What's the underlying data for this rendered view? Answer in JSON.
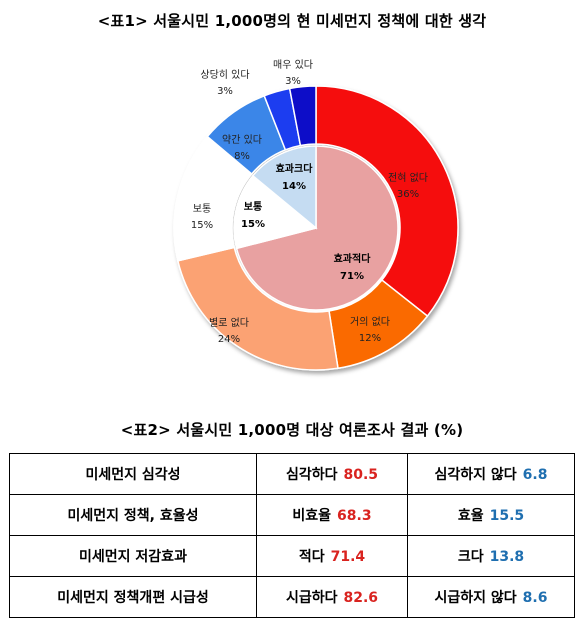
{
  "title1": "<표1> 서울시민 1,000명의 현 미세먼지 정책에 대한 생각",
  "title2": "<표2> 서울시민 1,000명 대상 여론조사 결과 (%)",
  "chart_data": {
    "type": "pie",
    "title": "<표1> 서울시민 1,000명의 현 미세먼지 정책에 대한 생각",
    "inner": [
      {
        "label": "효과적다",
        "value": 71,
        "text": "71%",
        "color": "#e8a1a1"
      },
      {
        "label": "보통",
        "value": 15,
        "text": "15%",
        "color": "#ffffff"
      },
      {
        "label": "효과크다",
        "value": 14,
        "text": "14%",
        "color": "#c5dcf2"
      }
    ],
    "outer": [
      {
        "label": "전혀 없다",
        "value": 36,
        "text": "36%",
        "color": "#f51010"
      },
      {
        "label": "거의 없다",
        "value": 12,
        "text": "12%",
        "color": "#fa6a06"
      },
      {
        "label": "별로 없다",
        "value": 24,
        "text": "24%",
        "color": "#fba273"
      },
      {
        "label": "보통",
        "value": 15,
        "text": "15%",
        "color": "#ffffff"
      },
      {
        "label": "약간 있다",
        "value": 8,
        "text": "8%",
        "color": "#3a86e8"
      },
      {
        "label": "상당히 있다",
        "value": 3,
        "text": "3%",
        "color": "#1e3df0"
      },
      {
        "label": "매우 있다",
        "value": 3,
        "text": "3%",
        "color": "#0a08c8"
      }
    ]
  },
  "table": {
    "rows": [
      {
        "topic": "미세먼지 심각성",
        "a_label": "심각하다",
        "a_value": "80.5",
        "b_label": "심각하지 않다",
        "b_value": "6.8"
      },
      {
        "topic": "미세먼지 정책, 효율성",
        "a_label": "비효율",
        "a_value": "68.3",
        "b_label": "효율",
        "b_value": "15.5"
      },
      {
        "topic": "미세먼지 저감효과",
        "a_label": "적다",
        "a_value": "71.4",
        "b_label": "크다",
        "b_value": "13.8"
      },
      {
        "topic": "미세먼지 정책개편 시급성",
        "a_label": "시급하다",
        "a_value": "82.6",
        "b_label": "시급하지 않다",
        "b_value": "8.6"
      }
    ]
  }
}
